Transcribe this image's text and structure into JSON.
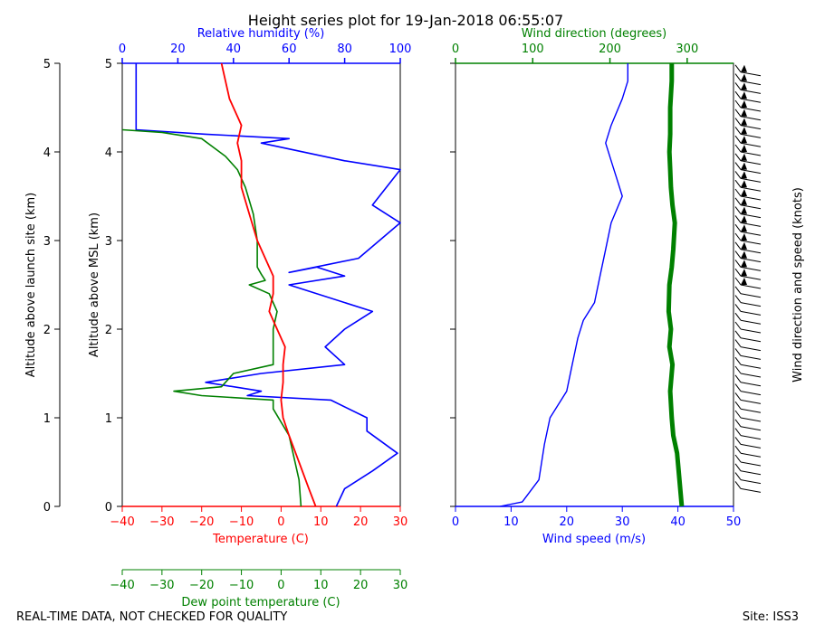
{
  "title": "Height series plot for 19-Jan-2018 06:55:07",
  "footer_left": "REAL-TIME DATA, NOT CHECKED FOR QUALITY",
  "footer_right": "Site: ISS3",
  "colors": {
    "temperature": "#ff0000",
    "dewpoint": "#008000",
    "rh": "#0000ff",
    "wind_speed": "#0000ff",
    "wind_dir": "#008000",
    "axis": "#000000"
  },
  "chart_data": [
    {
      "type": "line",
      "panel": "thermodynamics",
      "y_left_label": "Altitude above launch site (km)",
      "y_right_label": "Altitude above MSL (km)",
      "ylim": [
        0,
        5
      ],
      "yticks": [
        0,
        1,
        2,
        3,
        4,
        5
      ],
      "x_bottom": {
        "label": "Temperature (C)",
        "lim": [
          -40,
          30
        ],
        "ticks": [
          -40,
          -30,
          -20,
          -10,
          0,
          10,
          20,
          30
        ]
      },
      "x_bottom2": {
        "label": "Dew point temperature (C)",
        "lim": [
          -40,
          30
        ],
        "ticks": [
          -40,
          -30,
          -20,
          -10,
          0,
          10,
          20,
          30
        ]
      },
      "x_top": {
        "label": "Relative humidity (%)",
        "lim": [
          0,
          100
        ],
        "ticks": [
          0,
          20,
          40,
          60,
          80,
          100
        ]
      },
      "series": [
        {
          "name": "Temperature",
          "axis": "bottom",
          "points": [
            [
              8.7,
              0
            ],
            [
              7,
              0.2
            ],
            [
              4.5,
              0.5
            ],
            [
              2,
              0.8
            ],
            [
              0.5,
              1.0
            ],
            [
              0,
              1.2
            ],
            [
              0.5,
              1.4
            ],
            [
              0.5,
              1.6
            ],
            [
              1,
              1.8
            ],
            [
              -1,
              2.0
            ],
            [
              -3,
              2.2
            ],
            [
              -2,
              2.4
            ],
            [
              -2,
              2.6
            ],
            [
              -6,
              3.0
            ],
            [
              -8,
              3.3
            ],
            [
              -10,
              3.6
            ],
            [
              -10,
              3.9
            ],
            [
              -11,
              4.1
            ],
            [
              -10,
              4.3
            ],
            [
              -11,
              4.4
            ],
            [
              -13,
              4.6
            ],
            [
              -14,
              4.8
            ],
            [
              -15,
              5.0
            ]
          ]
        },
        {
          "name": "Dew point",
          "axis": "bottom",
          "points": [
            [
              5,
              0
            ],
            [
              4.5,
              0.3
            ],
            [
              3.5,
              0.5
            ],
            [
              2,
              0.8
            ],
            [
              -2,
              1.1
            ],
            [
              -2,
              1.2
            ],
            [
              -20,
              1.25
            ],
            [
              -27,
              1.3
            ],
            [
              -15,
              1.35
            ],
            [
              -12,
              1.5
            ],
            [
              -2,
              1.6
            ],
            [
              -2,
              1.8
            ],
            [
              -2,
              2.0
            ],
            [
              -1,
              2.2
            ],
            [
              -3,
              2.4
            ],
            [
              -8,
              2.5
            ],
            [
              -4,
              2.55
            ],
            [
              -5,
              2.62
            ],
            [
              -6,
              2.7
            ],
            [
              -6,
              3.0
            ],
            [
              -7,
              3.3
            ],
            [
              -9,
              3.6
            ],
            [
              -11,
              3.8
            ],
            [
              -14,
              3.95
            ],
            [
              -17,
              4.05
            ],
            [
              -20,
              4.15
            ],
            [
              -30,
              4.22
            ],
            [
              -40,
              4.25
            ]
          ]
        },
        {
          "name": "Relative humidity",
          "axis": "top",
          "points": [
            [
              77,
              0
            ],
            [
              80,
              0.2
            ],
            [
              90,
              0.4
            ],
            [
              99,
              0.6
            ],
            [
              88,
              0.85
            ],
            [
              88,
              1.0
            ],
            [
              75,
              1.2
            ],
            [
              45,
              1.25
            ],
            [
              50,
              1.3
            ],
            [
              30,
              1.4
            ],
            [
              50,
              1.5
            ],
            [
              80,
              1.6
            ],
            [
              73,
              1.8
            ],
            [
              80,
              2.0
            ],
            [
              90,
              2.2
            ],
            [
              60,
              2.5
            ],
            [
              80,
              2.6
            ],
            [
              70,
              2.7
            ],
            [
              60,
              2.64
            ],
            [
              85,
              2.8
            ],
            [
              100,
              3.2
            ],
            [
              90,
              3.4
            ],
            [
              95,
              3.6
            ],
            [
              100,
              3.8
            ],
            [
              80,
              3.9
            ],
            [
              50,
              4.1
            ],
            [
              60,
              4.15
            ],
            [
              30,
              4.2
            ],
            [
              5,
              4.25
            ],
            [
              5,
              4.5
            ],
            [
              5,
              4.8
            ],
            [
              5,
              5.0
            ]
          ]
        }
      ]
    },
    {
      "type": "line",
      "panel": "wind",
      "ylim": [
        0,
        5
      ],
      "yticks": [
        0,
        1,
        2,
        3,
        4,
        5
      ],
      "x_bottom": {
        "label": "Wind speed (m/s)",
        "lim": [
          0,
          50
        ],
        "ticks": [
          0,
          10,
          20,
          30,
          40,
          50
        ]
      },
      "x_top": {
        "label": "Wind direction (degrees)",
        "lim": [
          0,
          360
        ],
        "ticks": [
          0,
          100,
          200,
          300
        ]
      },
      "barb_label": "Wind direction and speed (knots)",
      "series": [
        {
          "name": "Wind speed",
          "axis": "bottom",
          "points": [
            [
              8,
              0
            ],
            [
              12,
              0.05
            ],
            [
              15,
              0.3
            ],
            [
              16,
              0.7
            ],
            [
              17,
              1.0
            ],
            [
              20,
              1.3
            ],
            [
              21,
              1.6
            ],
            [
              22,
              1.9
            ],
            [
              23,
              2.1
            ],
            [
              25,
              2.3
            ],
            [
              26,
              2.6
            ],
            [
              27,
              2.9
            ],
            [
              28,
              3.2
            ],
            [
              30,
              3.5
            ],
            [
              29,
              3.7
            ],
            [
              28,
              3.9
            ],
            [
              27,
              4.1
            ],
            [
              28,
              4.3
            ],
            [
              30,
              4.6
            ],
            [
              31,
              4.8
            ],
            [
              31,
              5.0
            ]
          ]
        },
        {
          "name": "Wind direction",
          "axis": "top",
          "points": [
            [
              293,
              0
            ],
            [
              290,
              0.3
            ],
            [
              287,
              0.6
            ],
            [
              282,
              0.8
            ],
            [
              280,
              1.0
            ],
            [
              278,
              1.3
            ],
            [
              281,
              1.6
            ],
            [
              277,
              1.8
            ],
            [
              279,
              2.0
            ],
            [
              276,
              2.2
            ],
            [
              277,
              2.5
            ],
            [
              280,
              2.7
            ],
            [
              282,
              2.9
            ],
            [
              284,
              3.2
            ],
            [
              281,
              3.4
            ],
            [
              279,
              3.6
            ],
            [
              278,
              3.8
            ],
            [
              277,
              4.0
            ],
            [
              278,
              4.2
            ],
            [
              278,
              4.5
            ],
            [
              280,
              4.8
            ],
            [
              280,
              5.0
            ]
          ]
        }
      ]
    }
  ]
}
